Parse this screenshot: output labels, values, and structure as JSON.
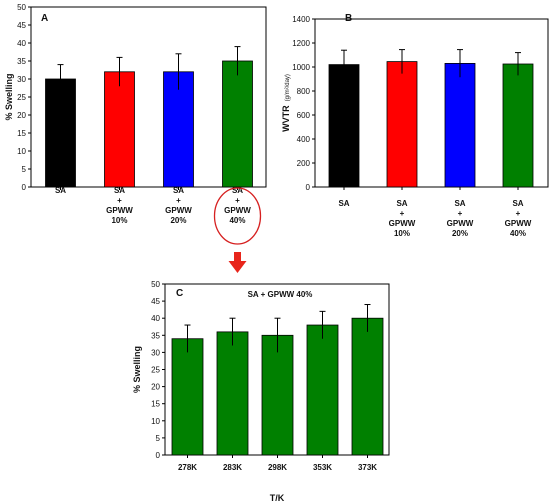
{
  "chart_data": [
    {
      "panel": "A",
      "type": "bar",
      "ylabel": "% Swelling",
      "ylim": [
        0,
        50
      ],
      "yticks": [
        0,
        5,
        10,
        15,
        20,
        25,
        30,
        35,
        40,
        45,
        50
      ],
      "categories": [
        [
          "SA"
        ],
        [
          "SA",
          "+",
          "GPWW",
          "10%"
        ],
        [
          "SA",
          "+",
          "GPWW",
          "20%"
        ],
        [
          "SA",
          "+",
          "GPWW",
          "40%"
        ]
      ],
      "values": [
        30,
        32,
        32,
        35
      ],
      "errors": [
        4,
        4,
        5,
        4
      ],
      "colors": [
        "#000000",
        "#ff0000",
        "#0000ff",
        "#008000"
      ],
      "highlighted_index": 3
    },
    {
      "panel": "B",
      "type": "bar",
      "ylabel": "WVTR",
      "ylabel_unit": "(g/m²/day)",
      "ylim": [
        0,
        1400
      ],
      "yticks": [
        0,
        200,
        400,
        600,
        800,
        1000,
        1200,
        1400
      ],
      "categories": [
        [
          "SA"
        ],
        [
          "SA",
          "+",
          "GPWW",
          "10%"
        ],
        [
          "SA",
          "+",
          "GPWW",
          "20%"
        ],
        [
          "SA",
          "+",
          "GPWW",
          "40%"
        ]
      ],
      "values": [
        1020,
        1045,
        1030,
        1025
      ],
      "errors": [
        120,
        100,
        115,
        95
      ],
      "colors": [
        "#000000",
        "#ff0000",
        "#0000ff",
        "#008000"
      ]
    },
    {
      "panel": "C",
      "type": "bar",
      "title": "SA + GPWW 40%",
      "xlabel": "T/K",
      "ylabel": "% Swelling",
      "ylim": [
        0,
        50
      ],
      "yticks": [
        0,
        5,
        10,
        15,
        20,
        25,
        30,
        35,
        40,
        45,
        50
      ],
      "categories": [
        [
          "278K"
        ],
        [
          "283K"
        ],
        [
          "298K"
        ],
        [
          "353K"
        ],
        [
          "373K"
        ]
      ],
      "values": [
        34,
        36,
        35,
        38,
        40
      ],
      "errors": [
        4,
        4,
        5,
        4,
        4
      ],
      "colors": [
        "#008000",
        "#008000",
        "#008000",
        "#008000",
        "#008000"
      ]
    }
  ],
  "annotation": {
    "highlight_color": "#d62020",
    "arrow_color": "#e8251b"
  }
}
